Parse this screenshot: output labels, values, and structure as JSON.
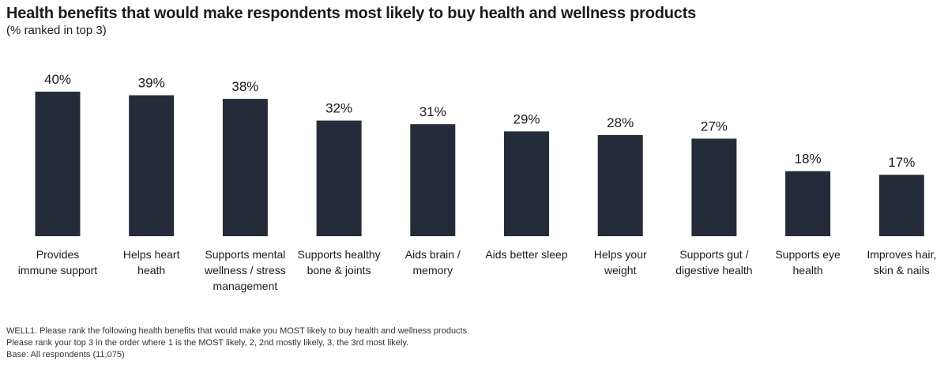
{
  "header": {
    "title": "Health benefits that would make respondents most likely to buy health and wellness products",
    "subtitle": "(% ranked in top 3)"
  },
  "chart_data": {
    "type": "bar",
    "categories": [
      [
        "Provides",
        "immune support"
      ],
      [
        "Helps heart",
        "heath"
      ],
      [
        "Supports mental",
        "wellness / stress",
        "management"
      ],
      [
        "Supports healthy",
        "bone & joints"
      ],
      [
        "Aids brain /",
        "memory"
      ],
      [
        "Aids better sleep"
      ],
      [
        "Helps your",
        "weight"
      ],
      [
        "Supports gut /",
        "digestive health"
      ],
      [
        "Supports eye",
        "health"
      ],
      [
        "Improves hair,",
        "skin & nails"
      ]
    ],
    "values": [
      40,
      39,
      38,
      32,
      31,
      29,
      28,
      27,
      18,
      17
    ],
    "data_labels": [
      "40%",
      "39%",
      "38%",
      "32%",
      "31%",
      "29%",
      "28%",
      "27%",
      "18%",
      "17%"
    ],
    "ylim": [
      0,
      40
    ],
    "bar_color": "#262b39",
    "grid": false,
    "legend": "none"
  },
  "footnotes": [
    "WELL1. Please rank the following health benefits that would make you MOST likely to buy health and wellness products.",
    "Please rank your top 3 in the order where 1 is the MOST likely, 2, 2nd mostly likely, 3, the 3rd most likely.",
    "Base: All respondents (11,075)"
  ]
}
